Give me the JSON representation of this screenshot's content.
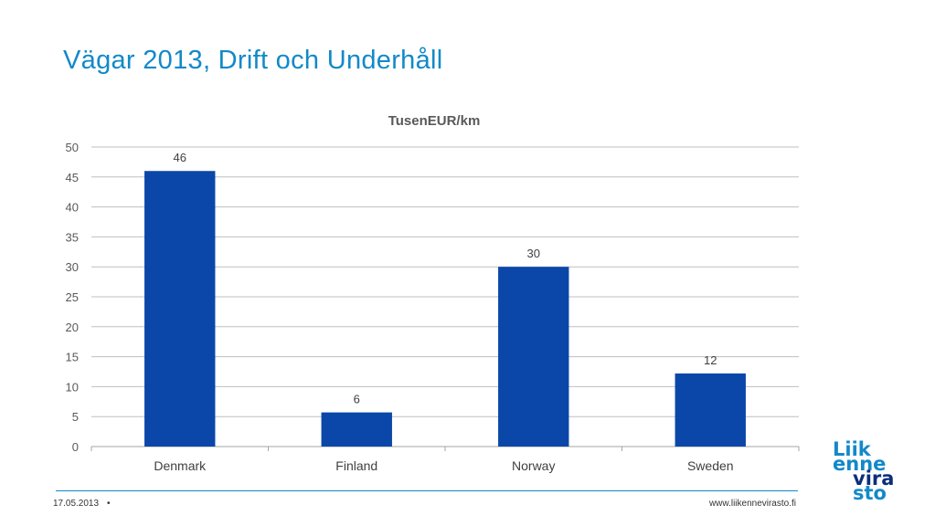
{
  "slide": {
    "title": "Vägar 2013, Drift och Underhåll"
  },
  "chart_data": {
    "type": "bar",
    "title": "TusenEUR/km",
    "categories": [
      "Denmark",
      "Finland",
      "Norway",
      "Sweden"
    ],
    "values": [
      46,
      5.7,
      30,
      12.2
    ],
    "data_labels": [
      "46",
      "6",
      "30",
      "12"
    ],
    "ylim": [
      0,
      50
    ],
    "yticks": [
      "0",
      "5",
      "10",
      "15",
      "20",
      "25",
      "30",
      "35",
      "40",
      "45",
      "50"
    ],
    "grid": true,
    "legend": "none",
    "bar_color": "#0a47a9"
  },
  "footer": {
    "date": "17.05.2013",
    "bullet": "•",
    "url": "www.liikennevirasto.fi"
  },
  "logo": {
    "lines": [
      "Liik",
      "enne",
      "vira",
      "sto"
    ],
    "colors": [
      "#1289c9",
      "#1289c9",
      "#0a2f7a",
      "#1289c9"
    ]
  }
}
